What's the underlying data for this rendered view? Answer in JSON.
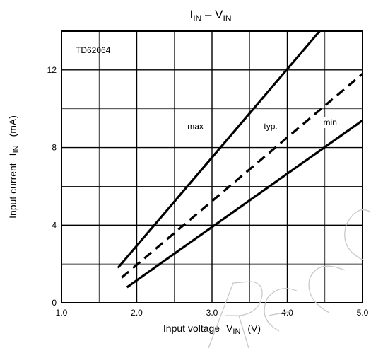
{
  "chart_data": {
    "type": "line",
    "title_main": "I",
    "title_main_sub": "IN",
    "title_dash": " – ",
    "title_second": "V",
    "title_second_sub": "IN",
    "xlabel_text": "Input voltage",
    "xlabel_symbol": "V",
    "xlabel_symbol_sub": "IN",
    "xlabel_unit": "(V)",
    "ylabel_text": "Input current",
    "ylabel_symbol": "I",
    "ylabel_symbol_sub": "IN",
    "ylabel_unit": "(mA)",
    "device_label": "TD62064",
    "xlim": [
      1.0,
      5.0
    ],
    "ylim": [
      0,
      14
    ],
    "x_ticks": [
      "1.0",
      "2.0",
      "3.0",
      "4.0",
      "5.0"
    ],
    "x_tick_values": [
      1.0,
      2.0,
      3.0,
      4.0,
      5.0
    ],
    "y_ticks": [
      "0",
      "4",
      "8",
      "12"
    ],
    "y_tick_values": [
      0,
      4,
      8,
      12
    ],
    "x_minor_grid": [
      1.5,
      2.5,
      3.5,
      4.5
    ],
    "y_minor_grid": [
      2,
      6,
      10
    ],
    "grid": true,
    "series": [
      {
        "name": "max",
        "style": "solid",
        "x": [
          1.75,
          4.43
        ],
        "y": [
          1.8,
          14.0
        ],
        "label_pos": {
          "x": 2.78,
          "y": 8.95
        }
      },
      {
        "name": "typ.",
        "style": "dashed",
        "x": [
          1.8,
          5.0
        ],
        "y": [
          1.3,
          11.8
        ],
        "label_pos": {
          "x": 3.78,
          "y": 8.95
        }
      },
      {
        "name": "min",
        "style": "solid",
        "x": [
          1.87,
          5.0
        ],
        "y": [
          0.8,
          9.4
        ],
        "label_pos": {
          "x": 4.57,
          "y": 9.15
        }
      }
    ]
  }
}
